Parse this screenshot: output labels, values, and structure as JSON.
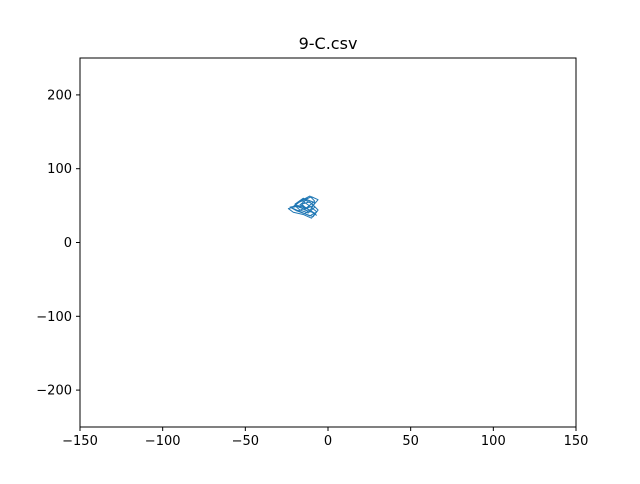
{
  "chart_data": {
    "type": "line",
    "title": "9-C.csv",
    "xlabel": "",
    "ylabel": "",
    "xlim": [
      -150,
      150
    ],
    "ylim": [
      -250,
      250
    ],
    "x_ticks": [
      -150,
      -100,
      -50,
      0,
      50,
      100,
      150
    ],
    "x_tick_labels": [
      "−150",
      "−100",
      "−50",
      "0",
      "50",
      "100",
      "150"
    ],
    "y_ticks": [
      -200,
      -100,
      0,
      100,
      200
    ],
    "y_tick_labels": [
      "−200",
      "−100",
      "0",
      "100",
      "200"
    ],
    "grid": false,
    "legend": "none",
    "series": [
      {
        "color": "#1f77b4",
        "x": [
          -12,
          -9,
          -15,
          -20,
          -14,
          -8,
          -11,
          -17,
          -22,
          -18,
          -10,
          -6,
          -9,
          -14,
          -19,
          -24,
          -21,
          -15,
          -10,
          -7,
          -12,
          -16,
          -11,
          -8,
          -13,
          -18,
          -14,
          -9,
          -6,
          -10,
          -15,
          -20,
          -17,
          -12,
          -8,
          -11,
          -16,
          -13,
          -9,
          -7,
          -12,
          -18,
          -23,
          -19,
          -14,
          -10,
          -8,
          -13,
          -17,
          -12
        ],
        "y": [
          48,
          55,
          60,
          52,
          44,
          40,
          36,
          42,
          47,
          54,
          62,
          58,
          50,
          45,
          49,
          46,
          41,
          38,
          33,
          42,
          51,
          57,
          63,
          56,
          47,
          43,
          39,
          35,
          44,
          53,
          59,
          50,
          44,
          40,
          48,
          55,
          52,
          46,
          41,
          37,
          45,
          50,
          48,
          43,
          39,
          46,
          54,
          58,
          51,
          46
        ]
      }
    ]
  }
}
